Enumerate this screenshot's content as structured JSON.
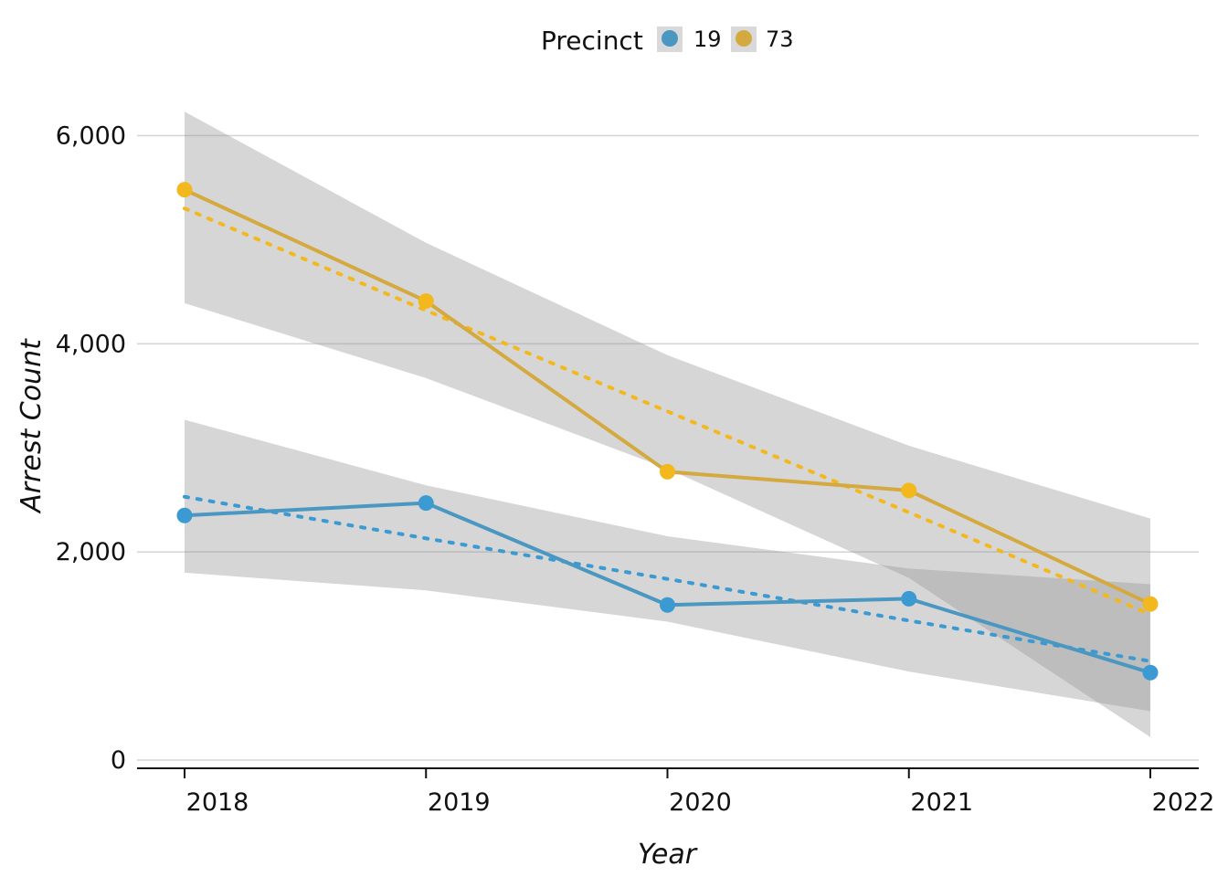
{
  "chart_data": {
    "type": "line",
    "xlabel": "Year",
    "ylabel": "Arrest Count",
    "x": [
      2018,
      2019,
      2020,
      2021,
      2022
    ],
    "x_tick_labels": [
      "2018",
      "2019",
      "2020",
      "2021",
      "2022"
    ],
    "y_ticks": [
      0,
      2000,
      4000,
      6000
    ],
    "y_tick_labels": [
      "0",
      "2,000",
      "4,000",
      "6,000"
    ],
    "ylim": [
      -100,
      6700
    ],
    "xlim": [
      2017.8,
      2022.2
    ],
    "grid": "horizontal",
    "legend": {
      "title": "Precinct",
      "position": "top"
    },
    "series": [
      {
        "name": "19",
        "color": "#3a9ad1",
        "line_color": "#4a97c2",
        "values": [
          2350,
          2470,
          1490,
          1550,
          840
        ],
        "trend": [
          2530,
          2130,
          1740,
          1340,
          950
        ],
        "ci_lower": [
          1800,
          1630,
          1330,
          850,
          470
        ],
        "ci_upper": [
          3270,
          2640,
          2150,
          1840,
          1690
        ]
      },
      {
        "name": "73",
        "color": "#f2b81e",
        "line_color": "#d4a940",
        "values": [
          5480,
          4410,
          2770,
          2590,
          1500
        ],
        "trend": [
          5300,
          4320,
          3350,
          2380,
          1400
        ],
        "ci_lower": [
          4390,
          3670,
          2800,
          1750,
          220
        ],
        "ci_upper": [
          6230,
          4970,
          3890,
          3020,
          2320
        ]
      }
    ]
  }
}
